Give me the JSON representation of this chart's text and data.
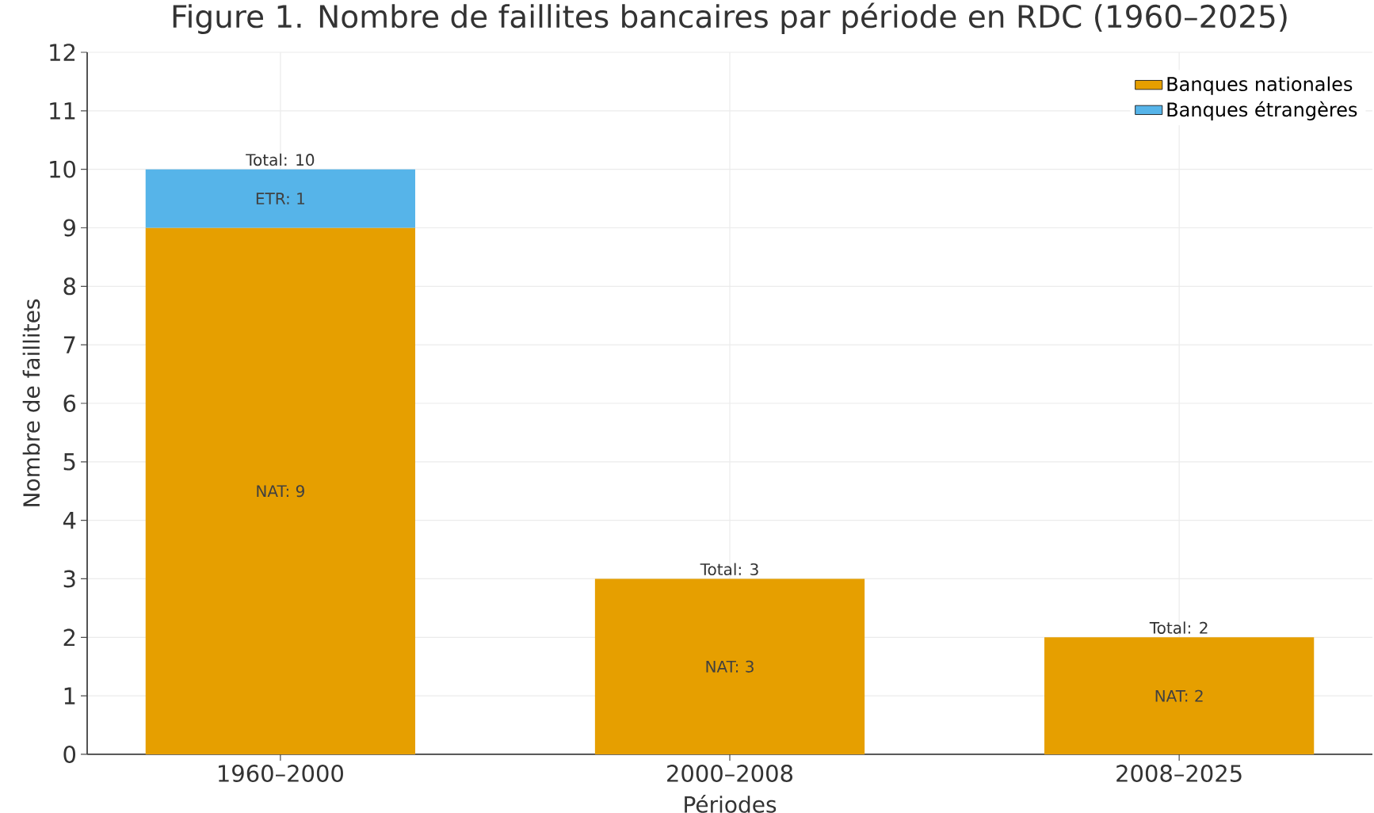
{
  "chart_data": {
    "type": "bar",
    "stacked": true,
    "title": "Figure 1. Nombre de faillites bancaires par période en RDC (1960–2025)",
    "xlabel": "Périodes",
    "ylabel": "Nombre de faillites",
    "categories": [
      "1960–2000",
      "2000–2008",
      "2008–2025"
    ],
    "series": [
      {
        "name": "Banques nationales",
        "color": "#e69f00",
        "values": [
          9,
          3,
          2
        ],
        "value_labels": [
          "NAT: 9",
          "NAT: 3",
          "NAT: 2"
        ]
      },
      {
        "name": "Banques étrangères",
        "color": "#56b4e9",
        "values": [
          1,
          0,
          0
        ],
        "value_labels": [
          "ETR: 1",
          null,
          null
        ]
      }
    ],
    "totals": [
      "Total: 10",
      "Total: 3",
      "Total: 2"
    ],
    "ylim": [
      0,
      12
    ],
    "yticks": [
      0,
      1,
      2,
      3,
      4,
      5,
      6,
      7,
      8,
      9,
      10,
      11,
      12
    ],
    "grid": true,
    "legend": "top right"
  }
}
